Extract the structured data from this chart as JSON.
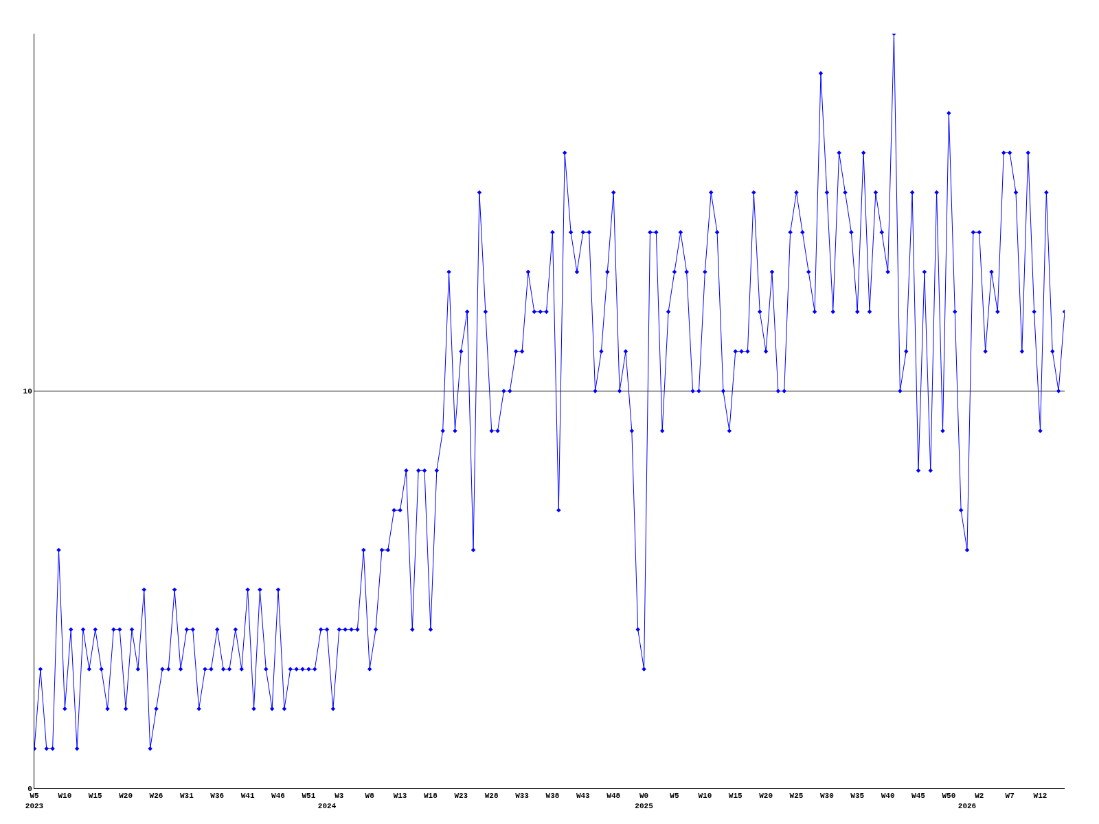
{
  "chart_data": {
    "type": "line",
    "color": "#0000ff",
    "marker": "diamond",
    "line_style": "solid",
    "grid": "y",
    "ylim": [
      0,
      19
    ],
    "yticks": [
      0,
      10
    ],
    "categories": [
      "W5\n2023",
      null,
      null,
      null,
      null,
      "W10",
      null,
      null,
      null,
      null,
      "W15",
      null,
      null,
      null,
      null,
      "W20",
      null,
      null,
      null,
      null,
      "W26",
      null,
      null,
      null,
      null,
      "W31",
      null,
      null,
      null,
      null,
      "W36",
      null,
      null,
      null,
      null,
      "W41",
      null,
      null,
      null,
      null,
      "W46",
      null,
      null,
      null,
      null,
      "W51",
      null,
      null,
      "\n2024",
      null,
      "W3",
      null,
      null,
      null,
      null,
      "W8",
      null,
      null,
      null,
      null,
      "W13",
      null,
      null,
      null,
      null,
      "W18",
      null,
      null,
      null,
      null,
      "W23",
      null,
      null,
      null,
      null,
      "W28",
      null,
      null,
      null,
      null,
      "W33",
      null,
      null,
      null,
      null,
      "W38",
      null,
      null,
      null,
      null,
      "W43",
      null,
      null,
      null,
      null,
      "W48",
      null,
      null,
      null,
      null,
      "W0\n2025",
      null,
      null,
      null,
      null,
      "W5",
      null,
      null,
      null,
      null,
      "W10",
      null,
      null,
      null,
      null,
      "W15",
      null,
      null,
      null,
      null,
      "W20",
      null,
      null,
      null,
      null,
      "W25",
      null,
      null,
      null,
      null,
      "W30",
      null,
      null,
      null,
      null,
      "W35",
      null,
      null,
      null,
      null,
      "W40",
      null,
      null,
      null,
      null,
      "W45",
      null,
      null,
      null,
      null,
      "W50",
      null,
      null,
      "\n2026",
      null,
      "W2",
      null,
      null,
      null,
      null,
      "W7",
      null,
      null,
      null,
      null,
      "W12",
      null,
      null,
      null,
      null
    ],
    "values": [
      1,
      3,
      1,
      1,
      6,
      2,
      4,
      1,
      4,
      3,
      4,
      3,
      2,
      4,
      4,
      2,
      4,
      3,
      5,
      1,
      2,
      3,
      3,
      5,
      3,
      4,
      4,
      2,
      3,
      3,
      4,
      3,
      3,
      4,
      3,
      5,
      2,
      5,
      3,
      2,
      5,
      2,
      3,
      3,
      3,
      3,
      3,
      4,
      4,
      2,
      4,
      4,
      4,
      4,
      6,
      3,
      4,
      6,
      6,
      7,
      7,
      8,
      4,
      8,
      8,
      4,
      8,
      9,
      13,
      9,
      11,
      12,
      6,
      15,
      12,
      9,
      9,
      10,
      10,
      11,
      11,
      13,
      12,
      12,
      12,
      14,
      7,
      16,
      14,
      13,
      14,
      14,
      10,
      11,
      13,
      15,
      10,
      11,
      9,
      4,
      3,
      14,
      14,
      9,
      12,
      13,
      14,
      13,
      10,
      10,
      13,
      15,
      14,
      10,
      9,
      11,
      11,
      11,
      15,
      12,
      11,
      13,
      10,
      10,
      14,
      15,
      14,
      13,
      12,
      18,
      15,
      12,
      16,
      15,
      14,
      12,
      16,
      12,
      15,
      14,
      13,
      19,
      10,
      11,
      15,
      8,
      13,
      8,
      15,
      9,
      17,
      12,
      7,
      6,
      14,
      14,
      11,
      13,
      12,
      16,
      16,
      15,
      11,
      16,
      12,
      9,
      15,
      11,
      10,
      12
    ]
  }
}
